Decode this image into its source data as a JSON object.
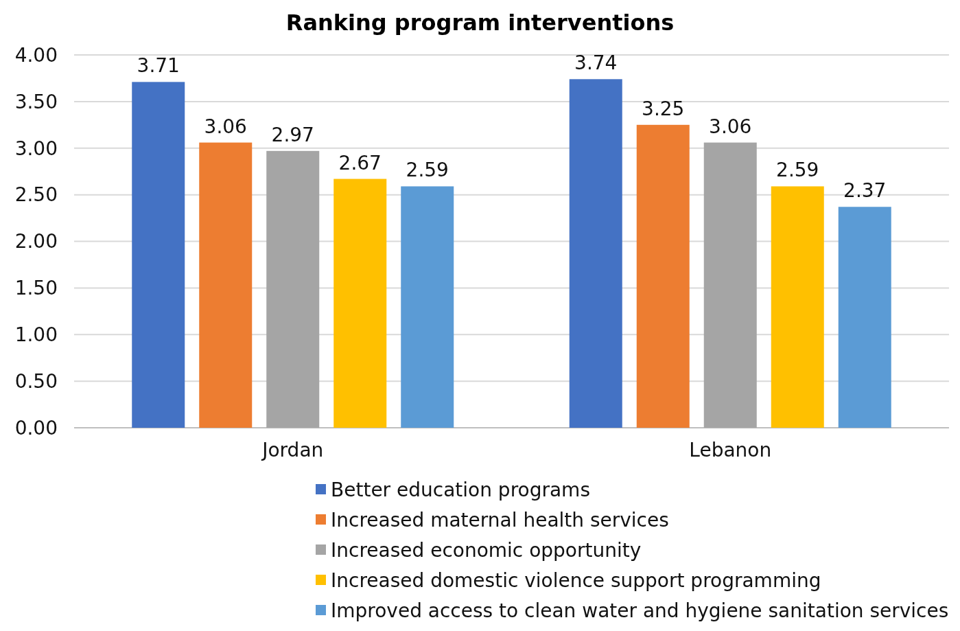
{
  "chart_data": {
    "type": "bar",
    "title": "Ranking program interventions",
    "categories": [
      "Jordan",
      "Lebanon"
    ],
    "series": [
      {
        "name": "Better education programs",
        "color": "#4472c4",
        "values": [
          3.71,
          3.74
        ]
      },
      {
        "name": "Increased maternal health services",
        "color": "#ed7d31",
        "values": [
          3.06,
          3.25
        ]
      },
      {
        "name": "Increased economic opportunity",
        "color": "#a5a5a5",
        "values": [
          2.97,
          3.06
        ]
      },
      {
        "name": "Increased domestic violence support programming",
        "color": "#ffc000",
        "values": [
          2.67,
          2.59
        ]
      },
      {
        "name": "Improved access to clean water and hygiene sanitation services",
        "color": "#5b9bd5",
        "values": [
          2.59,
          2.37
        ]
      }
    ],
    "ylim": [
      0,
      4
    ],
    "yticks": [
      {
        "value": 0,
        "label": "0.00"
      },
      {
        "value": 0.5,
        "label": "0.50"
      },
      {
        "value": 1,
        "label": "1.00"
      },
      {
        "value": 1.5,
        "label": "1.50"
      },
      {
        "value": 2,
        "label": "2.00"
      },
      {
        "value": 2.5,
        "label": "2.50"
      },
      {
        "value": 3,
        "label": "3.00"
      },
      {
        "value": 3.5,
        "label": "3.50"
      },
      {
        "value": 4,
        "label": "4.00"
      }
    ],
    "grid": "y",
    "legend": "bottom",
    "data_labels": true
  }
}
